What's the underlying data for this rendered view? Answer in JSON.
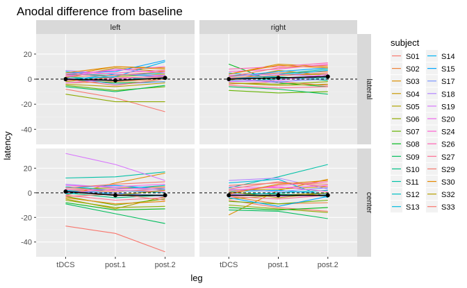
{
  "chart_data": {
    "type": "line",
    "title": "Anodal difference from baseline",
    "xlabel": "leg",
    "ylabel": "latency",
    "categories": [
      "tDCS",
      "post.1",
      "post.2"
    ],
    "ylim": [
      -52,
      36
    ],
    "yticks": [
      -40,
      -20,
      0,
      20
    ],
    "facet_cols": [
      "left",
      "right"
    ],
    "facet_rows": [
      "lateral",
      "center"
    ],
    "legend": {
      "title": "subject",
      "position": "right",
      "entries": [
        {
          "name": "S01",
          "color": "#F8766D"
        },
        {
          "name": "S02",
          "color": "#EC8239"
        },
        {
          "name": "S03",
          "color": "#DB8E00"
        },
        {
          "name": "S04",
          "color": "#C79800"
        },
        {
          "name": "S05",
          "color": "#AEA200"
        },
        {
          "name": "S06",
          "color": "#8FAA00"
        },
        {
          "name": "S07",
          "color": "#64B200"
        },
        {
          "name": "S08",
          "color": "#00B81B"
        },
        {
          "name": "S09",
          "color": "#00BD5C"
        },
        {
          "name": "S10",
          "color": "#00C085"
        },
        {
          "name": "S11",
          "color": "#00C1A7"
        },
        {
          "name": "S12",
          "color": "#00BFC4"
        },
        {
          "name": "S13",
          "color": "#00BADE"
        },
        {
          "name": "S14",
          "color": "#00B2F3"
        },
        {
          "name": "S15",
          "color": "#00A6FF"
        },
        {
          "name": "S17",
          "color": "#7C96FF"
        },
        {
          "name": "S18",
          "color": "#B385FF"
        },
        {
          "name": "S19",
          "color": "#D874FD"
        },
        {
          "name": "S20",
          "color": "#EF67EB"
        },
        {
          "name": "S24",
          "color": "#FD61D3"
        },
        {
          "name": "S26",
          "color": "#FF62B4"
        },
        {
          "name": "S27",
          "color": "#FF6C92"
        },
        {
          "name": "S29",
          "color": "#F4786D"
        },
        {
          "name": "S30",
          "color": "#E48800"
        },
        {
          "name": "S32",
          "color": "#B79F00"
        },
        {
          "name": "S33",
          "color": "#F8766D"
        }
      ]
    },
    "panels": [
      {
        "col": "left",
        "row": "lateral",
        "mean": [
          0,
          -1,
          1
        ],
        "series": [
          {
            "name": "S01",
            "values": [
              -8,
              -15,
              -26
            ]
          },
          {
            "name": "S02",
            "values": [
              -3,
              -2,
              0
            ]
          },
          {
            "name": "S03",
            "values": [
              3,
              10,
              9
            ]
          },
          {
            "name": "S04",
            "values": [
              1,
              9,
              6
            ]
          },
          {
            "name": "S05",
            "values": [
              -2,
              2,
              4
            ]
          },
          {
            "name": "S06",
            "values": [
              -12,
              -18,
              -18
            ]
          },
          {
            "name": "S07",
            "values": [
              -5,
              -9,
              -6
            ]
          },
          {
            "name": "S08",
            "values": [
              0,
              -3,
              -2
            ]
          },
          {
            "name": "S09",
            "values": [
              -6,
              -10,
              -5
            ]
          },
          {
            "name": "S10",
            "values": [
              2,
              -1,
              1
            ]
          },
          {
            "name": "S11",
            "values": [
              4,
              3,
              5
            ]
          },
          {
            "name": "S12",
            "values": [
              6,
              1,
              0
            ]
          },
          {
            "name": "S13",
            "values": [
              -1,
              4,
              2
            ]
          },
          {
            "name": "S14",
            "values": [
              0,
              2,
              14
            ]
          },
          {
            "name": "S15",
            "values": [
              5,
              6,
              15
            ]
          },
          {
            "name": "S17",
            "values": [
              1,
              -4,
              -2
            ]
          },
          {
            "name": "S18",
            "values": [
              7,
              4,
              3
            ]
          },
          {
            "name": "S19",
            "values": [
              2,
              8,
              5
            ]
          },
          {
            "name": "S20",
            "values": [
              -3,
              0,
              3
            ]
          },
          {
            "name": "S24",
            "values": [
              4,
              7,
              10
            ]
          },
          {
            "name": "S26",
            "values": [
              3,
              5,
              7
            ]
          },
          {
            "name": "S27",
            "values": [
              -1,
              1,
              2
            ]
          },
          {
            "name": "S29",
            "values": [
              0,
              -5,
              0
            ]
          },
          {
            "name": "S30",
            "values": [
              5,
              10,
              8
            ]
          },
          {
            "name": "S32",
            "values": [
              -4,
              -6,
              -3
            ]
          },
          {
            "name": "S33",
            "values": [
              2,
              3,
              6
            ]
          }
        ]
      },
      {
        "col": "right",
        "row": "lateral",
        "mean": [
          0,
          1,
          2
        ],
        "series": [
          {
            "name": "S01",
            "values": [
              -4,
              -2,
              -5
            ]
          },
          {
            "name": "S02",
            "values": [
              2,
              5,
              6
            ]
          },
          {
            "name": "S03",
            "values": [
              4,
              12,
              10
            ]
          },
          {
            "name": "S04",
            "values": [
              -1,
              7,
              3
            ]
          },
          {
            "name": "S05",
            "values": [
              0,
              3,
              4
            ]
          },
          {
            "name": "S06",
            "values": [
              -3,
              -4,
              -2
            ]
          },
          {
            "name": "S07",
            "values": [
              -9,
              -11,
              -10
            ]
          },
          {
            "name": "S08",
            "values": [
              12,
              -3,
              -6
            ]
          },
          {
            "name": "S09",
            "values": [
              -6,
              -8,
              -12
            ]
          },
          {
            "name": "S10",
            "values": [
              1,
              2,
              -1
            ]
          },
          {
            "name": "S11",
            "values": [
              3,
              4,
              8
            ]
          },
          {
            "name": "S12",
            "values": [
              -2,
              0,
              1
            ]
          },
          {
            "name": "S13",
            "values": [
              5,
              1,
              2
            ]
          },
          {
            "name": "S14",
            "values": [
              0,
              3,
              7
            ]
          },
          {
            "name": "S15",
            "values": [
              2,
              6,
              9
            ]
          },
          {
            "name": "S17",
            "values": [
              -1,
              -2,
              0
            ]
          },
          {
            "name": "S18",
            "values": [
              1,
              -3,
              3
            ]
          },
          {
            "name": "S19",
            "values": [
              3,
              4,
              2
            ]
          },
          {
            "name": "S20",
            "values": [
              -2,
              -1,
              4
            ]
          },
          {
            "name": "S24",
            "values": [
              6,
              8,
              12
            ]
          },
          {
            "name": "S26",
            "values": [
              8,
              10,
              13
            ]
          },
          {
            "name": "S27",
            "values": [
              -5,
              -7,
              -6
            ]
          },
          {
            "name": "S29",
            "values": [
              1,
              3,
              5
            ]
          },
          {
            "name": "S30",
            "values": [
              4,
              11,
              9
            ]
          },
          {
            "name": "S32",
            "values": [
              -3,
              -5,
              -4
            ]
          },
          {
            "name": "S33",
            "values": [
              2,
              9,
              11
            ]
          }
        ]
      },
      {
        "col": "left",
        "row": "center",
        "mean": [
          1,
          -2,
          -2
        ],
        "series": [
          {
            "name": "S01",
            "values": [
              -27,
              -33,
              -48
            ]
          },
          {
            "name": "S02",
            "values": [
              2,
              1,
              3
            ]
          },
          {
            "name": "S03",
            "values": [
              -2,
              8,
              16
            ]
          },
          {
            "name": "S04",
            "values": [
              3,
              4,
              5
            ]
          },
          {
            "name": "S05",
            "values": [
              -5,
              -13,
              -3
            ]
          },
          {
            "name": "S06",
            "values": [
              -6,
              -12,
              -11
            ]
          },
          {
            "name": "S07",
            "values": [
              -3,
              -10,
              -5
            ]
          },
          {
            "name": "S08",
            "values": [
              -8,
              -14,
              -13
            ]
          },
          {
            "name": "S09",
            "values": [
              -9,
              -17,
              -25
            ]
          },
          {
            "name": "S10",
            "values": [
              0,
              -4,
              -2
            ]
          },
          {
            "name": "S11",
            "values": [
              12,
              13,
              17
            ]
          },
          {
            "name": "S12",
            "values": [
              5,
              2,
              0
            ]
          },
          {
            "name": "S13",
            "values": [
              -1,
              3,
              6
            ]
          },
          {
            "name": "S14",
            "values": [
              2,
              -1,
              -2
            ]
          },
          {
            "name": "S15",
            "values": [
              4,
              6,
              3
            ]
          },
          {
            "name": "S17",
            "values": [
              1,
              0,
              -3
            ]
          },
          {
            "name": "S18",
            "values": [
              7,
              4,
              2
            ]
          },
          {
            "name": "S19",
            "values": [
              32,
              23,
              10
            ]
          },
          {
            "name": "S20",
            "values": [
              6,
              5,
              7
            ]
          },
          {
            "name": "S24",
            "values": [
              3,
              2,
              1
            ]
          },
          {
            "name": "S26",
            "values": [
              0,
              3,
              4
            ]
          },
          {
            "name": "S27",
            "values": [
              -2,
              -6,
              -4
            ]
          },
          {
            "name": "S29",
            "values": [
              4,
              7,
              9
            ]
          },
          {
            "name": "S30",
            "values": [
              -4,
              -9,
              -7
            ]
          },
          {
            "name": "S32",
            "values": [
              1,
              -2,
              2
            ]
          },
          {
            "name": "S33",
            "values": [
              -3,
              -1,
              -6
            ]
          }
        ]
      },
      {
        "col": "right",
        "row": "center",
        "mean": [
          -2,
          -2,
          -2
        ],
        "series": [
          {
            "name": "S01",
            "values": [
              -6,
              -12,
              -15
            ]
          },
          {
            "name": "S02",
            "values": [
              -3,
              -9,
              -8
            ]
          },
          {
            "name": "S03",
            "values": [
              -18,
              2,
              11
            ]
          },
          {
            "name": "S04",
            "values": [
              2,
              3,
              5
            ]
          },
          {
            "name": "S05",
            "values": [
              -5,
              -2,
              0
            ]
          },
          {
            "name": "S06",
            "values": [
              -10,
              -13,
              -16
            ]
          },
          {
            "name": "S07",
            "values": [
              -7,
              -9,
              -6
            ]
          },
          {
            "name": "S08",
            "values": [
              -12,
              -14,
              -12
            ]
          },
          {
            "name": "S09",
            "values": [
              -14,
              -15,
              -21
            ]
          },
          {
            "name": "S10",
            "values": [
              0,
              -1,
              -3
            ]
          },
          {
            "name": "S11",
            "values": [
              4,
              13,
              23
            ]
          },
          {
            "name": "S12",
            "values": [
              -2,
              0,
              2
            ]
          },
          {
            "name": "S13",
            "values": [
              8,
              11,
              -4
            ]
          },
          {
            "name": "S14",
            "values": [
              1,
              2,
              -1
            ]
          },
          {
            "name": "S15",
            "values": [
              -4,
              -11,
              -3
            ]
          },
          {
            "name": "S17",
            "values": [
              3,
              1,
              4
            ]
          },
          {
            "name": "S18",
            "values": [
              10,
              12,
              3
            ]
          },
          {
            "name": "S19",
            "values": [
              -1,
              -3,
              -2
            ]
          },
          {
            "name": "S20",
            "values": [
              5,
              4,
              6
            ]
          },
          {
            "name": "S24",
            "values": [
              2,
              5,
              1
            ]
          },
          {
            "name": "S26",
            "values": [
              0,
              6,
              9
            ]
          },
          {
            "name": "S27",
            "values": [
              -3,
              -5,
              -2
            ]
          },
          {
            "name": "S29",
            "values": [
              6,
              8,
              7
            ]
          },
          {
            "name": "S30",
            "values": [
              -1,
              7,
              10
            ]
          },
          {
            "name": "S32",
            "values": [
              1,
              -4,
              0
            ]
          },
          {
            "name": "S33",
            "values": [
              3,
              9,
              5
            ]
          }
        ]
      }
    ]
  }
}
